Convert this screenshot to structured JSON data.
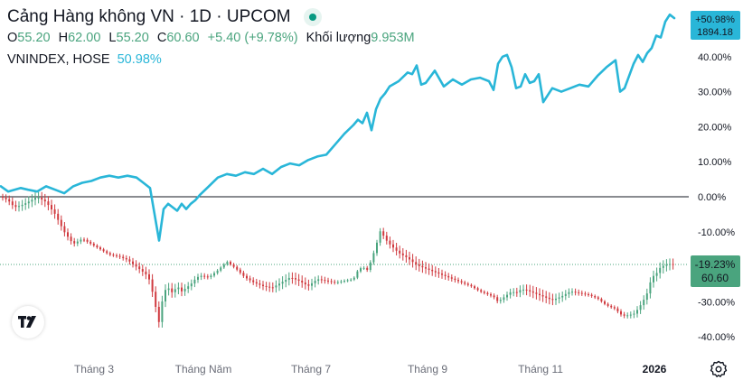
{
  "header": {
    "title": "Cảng Hàng không VN · 1D · UPCOM",
    "ohlc": [
      {
        "key": "O",
        "value": "55.20"
      },
      {
        "key": "H",
        "value": "62.00"
      },
      {
        "key": "L",
        "value": "55.20"
      },
      {
        "key": "C",
        "value": "60.60"
      }
    ],
    "change": "+5.40 (+9.78%)",
    "volume_label": "Khối lượng",
    "volume_value": "9.953M",
    "compare_symbol": "VNINDEX, HOSE",
    "compare_pct": "50.98%"
  },
  "colors": {
    "up": "#4aa47e",
    "down": "#d0393e",
    "compare_line": "#29b6d8",
    "zero_line": "#131722",
    "dotted_price_line": "#4aa47e"
  },
  "chart_data": {
    "type": "line",
    "scale": "percent",
    "y_ticks": [
      "40.00%",
      "30.00%",
      "20.00%",
      "10.00%",
      "0.00%",
      "-10.00%",
      "-20.00%",
      "-30.00%",
      "-40.00%"
    ],
    "x_ticks": [
      "Tháng 3",
      "Tháng Năm",
      "Tháng 7",
      "Tháng 9",
      "Tháng 11",
      "2026"
    ],
    "ylim": [
      -45,
      55
    ],
    "series": [
      {
        "name": "VNINDEX, HOSE",
        "type": "line",
        "label_top": "+50.98%",
        "label_bottom": "1894.18",
        "x": [
          0,
          8,
          15,
          22,
          30,
          40,
          50,
          60,
          70,
          80,
          90,
          100,
          110,
          120,
          130,
          140,
          150,
          155,
          160,
          165,
          170,
          175,
          180,
          185,
          190,
          195,
          200,
          205,
          210,
          215,
          220,
          230,
          240,
          250,
          260,
          270,
          280,
          290,
          300,
          310,
          320,
          330,
          340,
          350,
          360,
          370,
          380,
          390,
          395,
          400,
          405,
          410,
          415,
          420,
          425,
          430,
          440,
          450,
          455,
          460,
          465,
          470,
          480,
          490,
          500,
          510,
          520,
          530,
          540,
          545,
          550,
          555,
          560,
          565,
          570,
          575,
          580,
          585,
          590,
          595,
          600,
          610,
          620,
          630,
          640,
          650,
          660,
          670,
          680,
          685,
          690,
          700,
          705,
          710,
          715,
          720,
          725,
          730,
          735,
          740,
          745
        ],
        "y": [
          3.0,
          1.5,
          2.0,
          2.5,
          2.0,
          1.5,
          3.0,
          2.0,
          1.0,
          3.0,
          4.0,
          4.5,
          5.5,
          6.0,
          5.5,
          6.0,
          5.5,
          4.5,
          3.5,
          2.5,
          -5.0,
          -12.5,
          -3.5,
          -2.0,
          -3.0,
          -4.0,
          -2.0,
          -3.5,
          -2.0,
          -1.0,
          0.5,
          3.0,
          5.5,
          6.5,
          6.0,
          7.0,
          6.5,
          8.0,
          6.5,
          8.5,
          9.5,
          9.0,
          10.5,
          11.5,
          12.0,
          15.0,
          18.0,
          20.5,
          22.0,
          21.0,
          24.0,
          19.0,
          25.0,
          28.0,
          29.5,
          31.5,
          33.0,
          35.5,
          35.0,
          37.5,
          32.0,
          32.5,
          36.0,
          31.5,
          33.5,
          32.0,
          33.5,
          34.0,
          33.0,
          30.5,
          38.0,
          40.0,
          40.5,
          37.0,
          31.0,
          31.5,
          35.0,
          32.5,
          33.0,
          35.0,
          27.0,
          31.0,
          30.0,
          31.0,
          32.0,
          31.5,
          34.5,
          37.0,
          39.0,
          30.0,
          31.0,
          38.0,
          40.5,
          38.5,
          41.0,
          42.5,
          46.0,
          45.5,
          50.0,
          52.0,
          51.0
        ]
      },
      {
        "name": "Cảng Hàng không VN",
        "type": "candlestick",
        "label_top": "-19.23%",
        "label_bottom": "60.60",
        "x": [
          0,
          8,
          15,
          22,
          30,
          40,
          50,
          60,
          70,
          80,
          90,
          100,
          110,
          120,
          130,
          140,
          150,
          155,
          160,
          165,
          170,
          175,
          180,
          185,
          190,
          195,
          200,
          205,
          210,
          215,
          220,
          230,
          240,
          250,
          260,
          270,
          280,
          290,
          300,
          310,
          320,
          330,
          340,
          350,
          360,
          370,
          380,
          390,
          395,
          400,
          405,
          410,
          415,
          420,
          425,
          430,
          440,
          450,
          455,
          460,
          465,
          470,
          480,
          490,
          500,
          510,
          520,
          530,
          540,
          545,
          550,
          555,
          560,
          565,
          570,
          575,
          580,
          585,
          590,
          595,
          600,
          610,
          620,
          630,
          640,
          650,
          660,
          670,
          680,
          685,
          690,
          700,
          705,
          710,
          715,
          720,
          725,
          730,
          735,
          740,
          745
        ],
        "y": [
          0.0,
          -1.0,
          -3.0,
          -2.5,
          -1.5,
          0.0,
          -1.5,
          -5.0,
          -10.0,
          -13.5,
          -12.0,
          -13.5,
          -15.0,
          -16.5,
          -17.0,
          -18.0,
          -20.0,
          -21.0,
          -22.0,
          -24.0,
          -30.0,
          -36.0,
          -27.0,
          -26.0,
          -27.5,
          -25.5,
          -27.0,
          -26.0,
          -25.0,
          -23.5,
          -22.5,
          -23.0,
          -21.0,
          -18.5,
          -20.5,
          -23.0,
          -24.5,
          -25.5,
          -26.0,
          -24.5,
          -23.0,
          -24.0,
          -25.5,
          -23.5,
          -24.0,
          -24.5,
          -24.0,
          -23.5,
          -21.0,
          -20.0,
          -21.0,
          -18.0,
          -14.0,
          -9.5,
          -12.0,
          -13.5,
          -16.0,
          -17.5,
          -18.5,
          -19.5,
          -20.0,
          -20.5,
          -21.5,
          -22.5,
          -23.5,
          -24.5,
          -25.5,
          -27.0,
          -28.0,
          -28.5,
          -30.0,
          -29.0,
          -28.0,
          -27.0,
          -27.5,
          -26.5,
          -26.5,
          -27.0,
          -27.5,
          -28.0,
          -28.5,
          -29.5,
          -28.5,
          -27.0,
          -27.5,
          -28.0,
          -29.0,
          -31.0,
          -32.0,
          -33.5,
          -34.0,
          -33.5,
          -32.0,
          -30.0,
          -27.5,
          -23.0,
          -22.0,
          -20.0,
          -19.5,
          -19.2,
          -19.23
        ]
      }
    ]
  }
}
